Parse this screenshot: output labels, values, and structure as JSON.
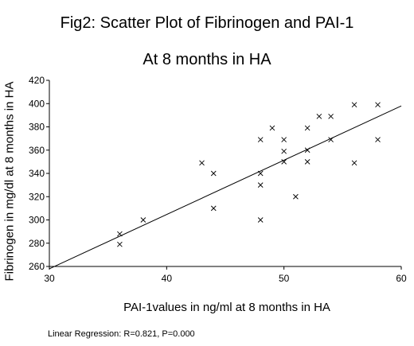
{
  "chart_data": {
    "type": "scatter",
    "title": "Fig2: Scatter Plot of Fibrinogen and PAI-1",
    "subtitle": "At 8 months in HA",
    "xlabel": "PAI-1values in ng/ml at 8 months in HA",
    "ylabel": "Fibrinogen in mg/dl at 8 months in HA",
    "xlim": [
      30,
      60
    ],
    "ylim": [
      260,
      420
    ],
    "x_ticks": [
      "30",
      "40",
      "50",
      "60"
    ],
    "y_ticks": [
      "260",
      "280",
      "300",
      "320",
      "340",
      "360",
      "380",
      "400",
      "420"
    ],
    "grid": false,
    "marker": "x",
    "points": [
      {
        "x": 36,
        "y": 288
      },
      {
        "x": 36,
        "y": 279
      },
      {
        "x": 38,
        "y": 300
      },
      {
        "x": 43,
        "y": 349
      },
      {
        "x": 44,
        "y": 340
      },
      {
        "x": 44,
        "y": 310
      },
      {
        "x": 48,
        "y": 369
      },
      {
        "x": 48,
        "y": 340
      },
      {
        "x": 48,
        "y": 330
      },
      {
        "x": 48,
        "y": 300
      },
      {
        "x": 49,
        "y": 379
      },
      {
        "x": 50,
        "y": 369
      },
      {
        "x": 50,
        "y": 359
      },
      {
        "x": 50,
        "y": 350
      },
      {
        "x": 51,
        "y": 320
      },
      {
        "x": 52,
        "y": 379
      },
      {
        "x": 52,
        "y": 360
      },
      {
        "x": 52,
        "y": 350
      },
      {
        "x": 53,
        "y": 389
      },
      {
        "x": 54,
        "y": 389
      },
      {
        "x": 54,
        "y": 369
      },
      {
        "x": 56,
        "y": 399
      },
      {
        "x": 56,
        "y": 349
      },
      {
        "x": 58,
        "y": 399
      },
      {
        "x": 58,
        "y": 369
      }
    ],
    "regression_line": {
      "x": [
        30,
        60
      ],
      "y": [
        258,
        398
      ]
    },
    "annotation": "Linear Regression: R=0.821, P=0.000"
  }
}
